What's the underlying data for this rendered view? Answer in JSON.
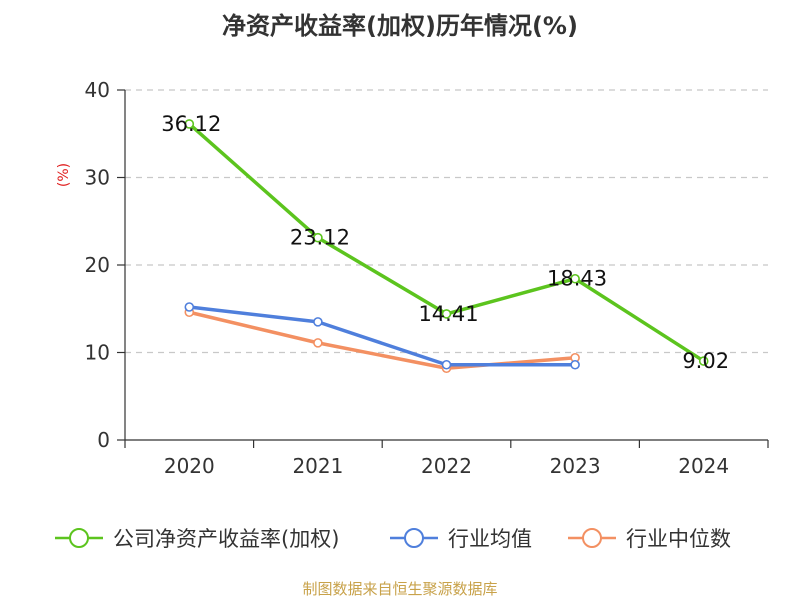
{
  "chart_data": {
    "type": "line",
    "title": "净资产收益率(加权)历年情况(%)",
    "ylabel": "(%)",
    "xlabel": "",
    "categories": [
      "2020",
      "2021",
      "2022",
      "2023",
      "2024"
    ],
    "ylim": [
      0,
      40
    ],
    "yticks": [
      0,
      10,
      20,
      30,
      40
    ],
    "grid": true,
    "legend_position": "bottom",
    "series": [
      {
        "name": "公司净资产收益率(加权)",
        "color": "#5cc41e",
        "values": [
          36.12,
          23.12,
          14.41,
          18.43,
          9.02
        ],
        "labels": [
          "36.12",
          "23.12",
          "14.41",
          "18.43",
          "9.02"
        ]
      },
      {
        "name": "行业均值",
        "color": "#4f7fdc",
        "values": [
          15.2,
          13.5,
          8.6,
          8.6,
          null
        ]
      },
      {
        "name": "行业中位数",
        "color": "#f39062",
        "values": [
          14.6,
          11.1,
          8.2,
          9.4,
          null
        ]
      }
    ]
  },
  "source": "制图数据来自恒生聚源数据库"
}
